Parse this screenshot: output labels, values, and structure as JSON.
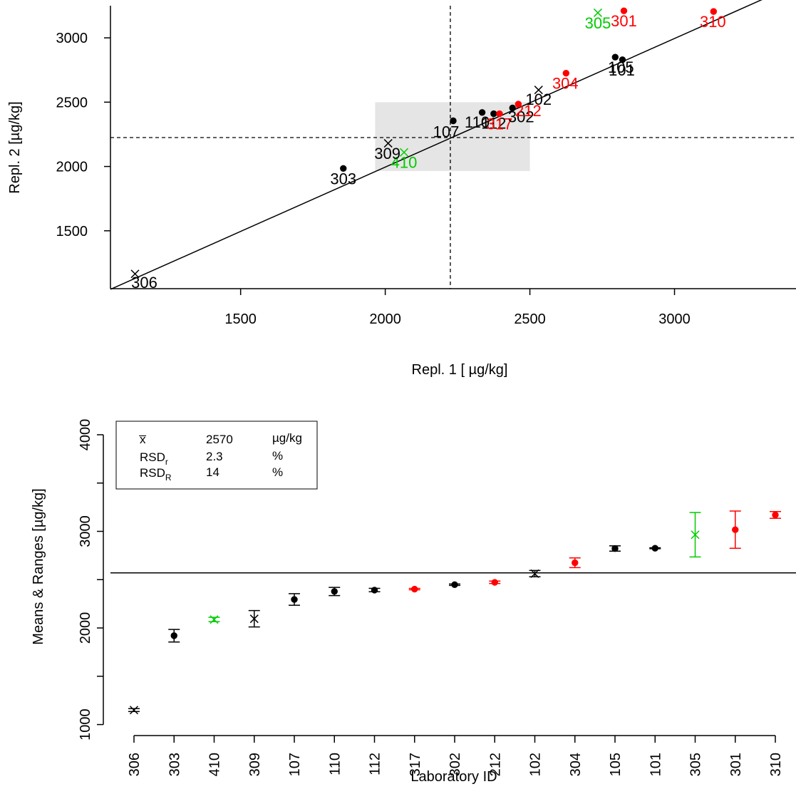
{
  "chart_data": [
    {
      "type": "scatter",
      "title": "",
      "xlabel": "Repl. 1 [ µg/kg]",
      "ylabel": "Repl. 2 [µg/kg]",
      "xlim": [
        1050,
        3420
      ],
      "ylim": [
        1050,
        3250
      ],
      "x_ticks": [
        "1500",
        "2000",
        "2500",
        "3000"
      ],
      "y_ticks": [
        "1500",
        "2000",
        "2500",
        "3000"
      ],
      "mean_line": 2225,
      "consensus_box": {
        "x": [
          1965,
          2500
        ],
        "y": [
          1965,
          2500
        ]
      },
      "colors": {
        "ok": "#000000",
        "flagged": "#ff0000",
        "excluded": "#00cc00",
        "box": "#e5e5e5"
      },
      "points": [
        {
          "label": "306",
          "x": 1135,
          "y": 1165,
          "symbol": "x",
          "status": "ok"
        },
        {
          "label": "303",
          "x": 1855,
          "y": 1985,
          "symbol": "dot",
          "status": "ok"
        },
        {
          "label": "410",
          "x": 2065,
          "y": 2110,
          "symbol": "x",
          "status": "excluded"
        },
        {
          "label": "309",
          "x": 2010,
          "y": 2180,
          "symbol": "x",
          "status": "ok"
        },
        {
          "label": "107",
          "x": 2235,
          "y": 2355,
          "symbol": "dot",
          "status": "ok"
        },
        {
          "label": "110",
          "x": 2335,
          "y": 2420,
          "symbol": "dot",
          "status": "ok"
        },
        {
          "label": "112",
          "x": 2375,
          "y": 2410,
          "symbol": "dot",
          "status": "ok"
        },
        {
          "label": "317",
          "x": 2395,
          "y": 2410,
          "symbol": "dot",
          "status": "flagged"
        },
        {
          "label": "302",
          "x": 2440,
          "y": 2455,
          "symbol": "dot",
          "status": "ok"
        },
        {
          "label": "212",
          "x": 2460,
          "y": 2485,
          "symbol": "dot",
          "status": "flagged"
        },
        {
          "label": "102",
          "x": 2530,
          "y": 2595,
          "symbol": "x",
          "status": "ok"
        },
        {
          "label": "304",
          "x": 2625,
          "y": 2725,
          "symbol": "dot",
          "status": "flagged"
        },
        {
          "label": "105",
          "x": 2795,
          "y": 2850,
          "symbol": "dot",
          "status": "ok"
        },
        {
          "label": "101",
          "x": 2820,
          "y": 2830,
          "symbol": "dot",
          "status": "ok"
        },
        {
          "label": "305",
          "x": 2735,
          "y": 3195,
          "symbol": "x",
          "status": "excluded"
        },
        {
          "label": "301",
          "x": 2825,
          "y": 3210,
          "symbol": "dot",
          "status": "flagged"
        },
        {
          "label": "310",
          "x": 3135,
          "y": 3205,
          "symbol": "dot",
          "status": "flagged"
        }
      ]
    },
    {
      "type": "scatter",
      "title": "",
      "xlabel": "Laboratory ID",
      "ylabel": "Means & Ranges [µg/kg]",
      "ylim": [
        960,
        4280
      ],
      "y_ticks": [
        "1000",
        "2000",
        "3000",
        "4000"
      ],
      "overall_mean": 2570,
      "legend": {
        "position": "top-left",
        "rows": [
          {
            "symbol": "x̅",
            "value": "2570",
            "unit": "µg/kg"
          },
          {
            "symbol": "RSD",
            "subscript": "r",
            "value": "2.3",
            "unit": "%"
          },
          {
            "symbol": "RSD",
            "subscript": "R",
            "value": "14",
            "unit": "%"
          }
        ]
      },
      "labs": [
        {
          "id": "306",
          "mean": 1150,
          "low": 1135,
          "high": 1165,
          "symbol": "x",
          "status": "ok"
        },
        {
          "id": "303",
          "mean": 1920,
          "low": 1855,
          "high": 1985,
          "symbol": "dot",
          "status": "ok"
        },
        {
          "id": "410",
          "mean": 2087,
          "low": 2065,
          "high": 2110,
          "symbol": "x",
          "status": "excluded"
        },
        {
          "id": "309",
          "mean": 2095,
          "low": 2010,
          "high": 2180,
          "symbol": "x",
          "status": "ok"
        },
        {
          "id": "107",
          "mean": 2295,
          "low": 2235,
          "high": 2355,
          "symbol": "dot",
          "status": "ok"
        },
        {
          "id": "110",
          "mean": 2378,
          "low": 2335,
          "high": 2420,
          "symbol": "dot",
          "status": "ok"
        },
        {
          "id": "112",
          "mean": 2392,
          "low": 2375,
          "high": 2410,
          "symbol": "dot",
          "status": "ok"
        },
        {
          "id": "317",
          "mean": 2402,
          "low": 2395,
          "high": 2410,
          "symbol": "dot",
          "status": "flagged"
        },
        {
          "id": "302",
          "mean": 2448,
          "low": 2440,
          "high": 2455,
          "symbol": "dot",
          "status": "ok"
        },
        {
          "id": "212",
          "mean": 2472,
          "low": 2460,
          "high": 2485,
          "symbol": "dot",
          "status": "flagged"
        },
        {
          "id": "102",
          "mean": 2562,
          "low": 2530,
          "high": 2595,
          "symbol": "x",
          "status": "ok"
        },
        {
          "id": "304",
          "mean": 2675,
          "low": 2625,
          "high": 2725,
          "symbol": "dot",
          "status": "flagged"
        },
        {
          "id": "105",
          "mean": 2822,
          "low": 2795,
          "high": 2850,
          "symbol": "dot",
          "status": "ok"
        },
        {
          "id": "101",
          "mean": 2825,
          "low": 2820,
          "high": 2830,
          "symbol": "dot",
          "status": "ok"
        },
        {
          "id": "305",
          "mean": 2965,
          "low": 2735,
          "high": 3195,
          "symbol": "x",
          "status": "excluded"
        },
        {
          "id": "301",
          "mean": 3017,
          "low": 2825,
          "high": 3210,
          "symbol": "dot",
          "status": "flagged"
        },
        {
          "id": "310",
          "mean": 3170,
          "low": 3135,
          "high": 3205,
          "symbol": "dot",
          "status": "flagged"
        }
      ]
    }
  ]
}
